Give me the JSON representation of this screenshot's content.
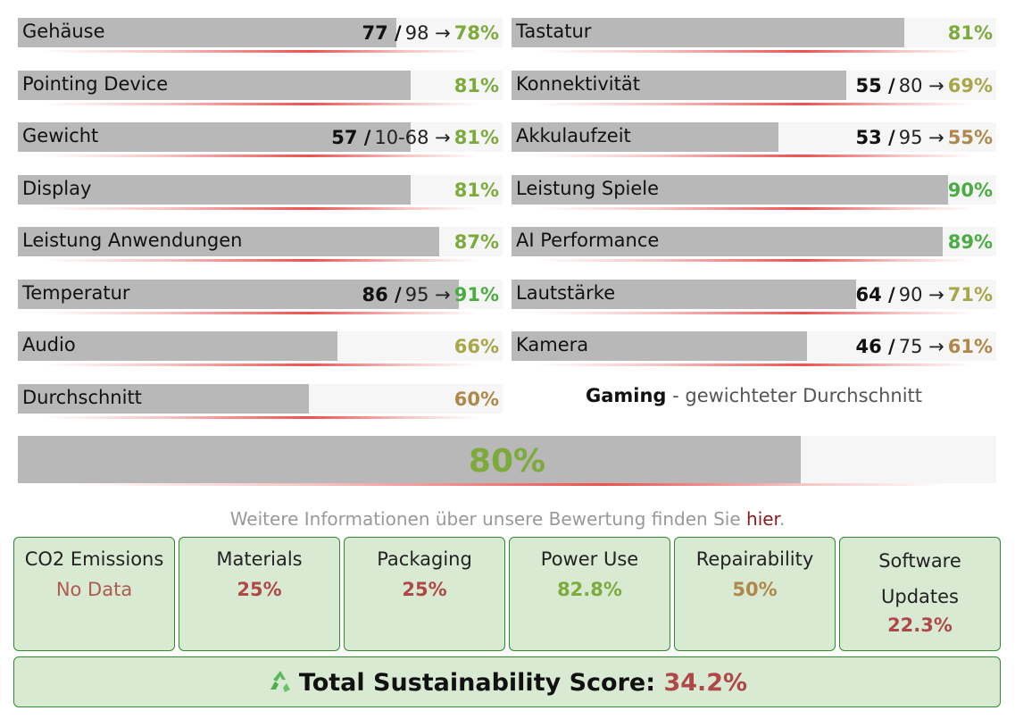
{
  "ratings": {
    "left": [
      {
        "label": "Gehäuse",
        "raw": "77 /",
        "ref": "98 →",
        "value": 78,
        "value_label": "78%",
        "color": "#7cab3c"
      },
      {
        "label": "Pointing Device",
        "value": 81,
        "value_label": "81%",
        "color": "#7cab3c"
      },
      {
        "label": "Gewicht",
        "raw": "57 /",
        "ref": "10-68 →",
        "value": 81,
        "value_label": "81%",
        "color": "#7cab3c"
      },
      {
        "label": "Display",
        "value": 81,
        "value_label": "81%",
        "color": "#7cab3c"
      },
      {
        "label": "Leistung Anwendungen",
        "value": 87,
        "value_label": "87%",
        "color": "#7cab3c"
      },
      {
        "label": "Temperatur",
        "raw": "86 /",
        "ref": "95 →",
        "value": 91,
        "value_label": "91%",
        "color": "#4aad42"
      },
      {
        "label": "Audio",
        "value": 66,
        "value_label": "66%",
        "color": "#a8a648"
      },
      {
        "label": "Durchschnitt",
        "value": 60,
        "value_label": "60%",
        "color": "#b0874a"
      }
    ],
    "right": [
      {
        "label": "Tastatur",
        "value": 81,
        "value_label": "81%",
        "color": "#7cab3c"
      },
      {
        "label": "Konnektivität",
        "raw": "55 /",
        "ref": "80 →",
        "value": 69,
        "value_label": "69%",
        "color": "#a8a648"
      },
      {
        "label": "Akkulaufzeit",
        "raw": "53 /",
        "ref": "95 →",
        "value": 55,
        "value_label": "55%",
        "color": "#b0874a"
      },
      {
        "label": "Leistung Spiele",
        "value": 90,
        "value_label": "90%",
        "color": "#4aad42"
      },
      {
        "label": "AI Performance",
        "value": 89,
        "value_label": "89%",
        "color": "#4aad42"
      },
      {
        "label": "Lautstärke",
        "raw": "64 /",
        "ref": "90 →",
        "value": 71,
        "value_label": "71%",
        "color": "#a8a648"
      },
      {
        "label": "Kamera",
        "raw": "46 /",
        "ref": "75 →",
        "value": 61,
        "value_label": "61%",
        "color": "#b0874a"
      }
    ]
  },
  "total": {
    "profile": "Gaming",
    "caption": "- gewichteter Durchschnitt",
    "value": 80,
    "value_label": "80%",
    "color": "#7cab3c"
  },
  "info": {
    "text": "Weitere Informationen über unsere Bewertung finden Sie ",
    "link": "hier",
    "end": "."
  },
  "sustainability": {
    "items": [
      {
        "label": "CO2 Emissions",
        "value": "No Data",
        "color": "#b05a50"
      },
      {
        "label": "Materials",
        "value": "25%",
        "color": "#b04848"
      },
      {
        "label": "Packaging",
        "value": "25%",
        "color": "#b04848"
      },
      {
        "label": "Power Use",
        "value": "82.8%",
        "color": "#7cab3c"
      },
      {
        "label": "Repairability",
        "value": "50%",
        "color": "#b0874a"
      },
      {
        "label": "Software Updates",
        "value": "22.3%",
        "color": "#b04848"
      }
    ],
    "total_label": "Total Sustainability Score:",
    "total_value": "34.2%",
    "total_color": "#b04848"
  }
}
